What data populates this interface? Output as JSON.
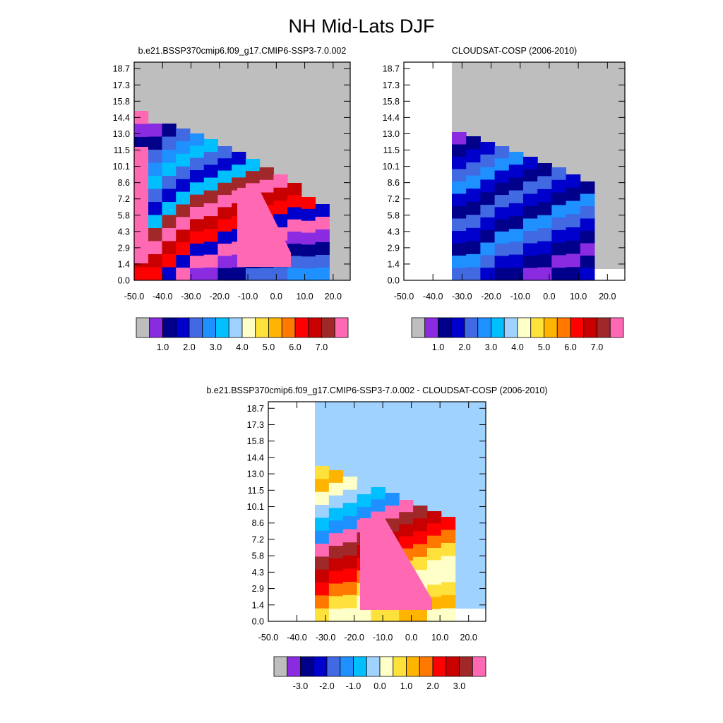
{
  "figure_title": "NH Mid-Lats DJF",
  "chart_data": [
    {
      "type": "heatmap",
      "title": "b.e21.BSSP370cmip6.f09_g17.CMIP6-SSP3-7.0.002",
      "x_tick_labels": [
        "-50.0",
        "-40.0",
        "-30.0",
        "-20.0",
        "-10.0",
        "0.0",
        "10.0",
        "20.0"
      ],
      "y_tick_labels": [
        "0.0",
        "1.4",
        "2.9",
        "4.3",
        "5.8",
        "7.2",
        "8.6",
        "10.1",
        "11.5",
        "13.0",
        "14.4",
        "15.8",
        "17.3",
        "18.7"
      ],
      "colorbar_labels": [
        "1.0",
        "2.0",
        "3.0",
        "4.0",
        "5.0",
        "6.0",
        "7.0"
      ],
      "colorbar_colors": [
        "#bebebe",
        "#8a2be2",
        "#00008b",
        "#0000cd",
        "#4169e1",
        "#1e90ff",
        "#00bfff",
        "#a0d2ff",
        "#ffffc8",
        "#ffe13c",
        "#ffb400",
        "#ff7800",
        "#ff0000",
        "#c80000",
        "#a02828",
        "#ff69b4"
      ]
    },
    {
      "type": "heatmap",
      "title": "CLOUDSAT-COSP (2006-2010)",
      "x_tick_labels": [
        "-50.0",
        "-40.0",
        "-30.0",
        "-20.0",
        "-10.0",
        "0.0",
        "10.0",
        "20.0"
      ],
      "y_tick_labels": [
        "0.0",
        "1.4",
        "2.9",
        "4.3",
        "5.8",
        "7.2",
        "8.6",
        "10.1",
        "11.5",
        "13.0",
        "14.4",
        "15.8",
        "17.3",
        "18.7"
      ],
      "colorbar_labels": [
        "1.0",
        "2.0",
        "3.0",
        "4.0",
        "5.0",
        "6.0",
        "7.0"
      ],
      "colorbar_colors": [
        "#bebebe",
        "#8a2be2",
        "#00008b",
        "#0000cd",
        "#4169e1",
        "#1e90ff",
        "#00bfff",
        "#a0d2ff",
        "#ffffc8",
        "#ffe13c",
        "#ffb400",
        "#ff7800",
        "#ff0000",
        "#c80000",
        "#a02828",
        "#ff69b4"
      ]
    },
    {
      "type": "heatmap",
      "title": "b.e21.BSSP370cmip6.f09_g17.CMIP6-SSP3-7.0.002 - CLOUDSAT-COSP (2006-2010)",
      "x_tick_labels": [
        "-50.0",
        "-40.0",
        "-30.0",
        "-20.0",
        "-10.0",
        "0.0",
        "10.0",
        "20.0"
      ],
      "y_tick_labels": [
        "0.0",
        "1.4",
        "2.9",
        "4.3",
        "5.8",
        "7.2",
        "8.6",
        "10.1",
        "11.5",
        "13.0",
        "14.4",
        "15.8",
        "17.3",
        "18.7"
      ],
      "colorbar_labels": [
        "-3.0",
        "-2.0",
        "-1.0",
        "0.0",
        "1.0",
        "2.0",
        "3.0"
      ],
      "colorbar_colors": [
        "#bebebe",
        "#8a2be2",
        "#00008b",
        "#0000cd",
        "#4169e1",
        "#1e90ff",
        "#00bfff",
        "#a0d2ff",
        "#ffffc8",
        "#ffe13c",
        "#ffb400",
        "#ff7800",
        "#ff0000",
        "#c80000",
        "#a02828",
        "#ff69b4"
      ]
    }
  ]
}
